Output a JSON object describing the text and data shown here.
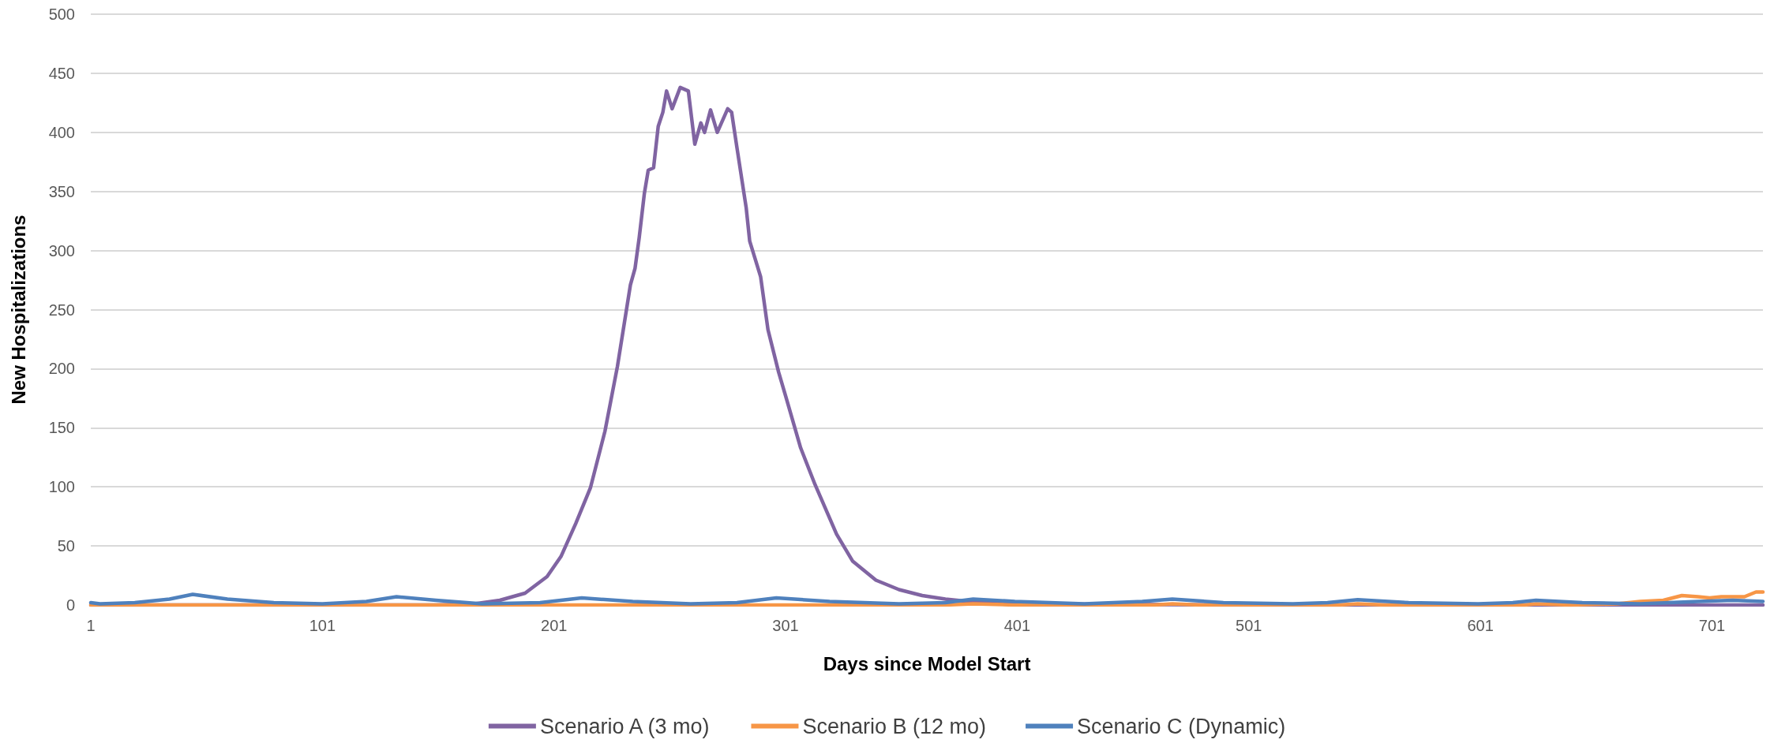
{
  "chart_data": {
    "type": "line",
    "xlabel": "Days since Model Start",
    "ylabel": "New Hospitalizations",
    "xlim": [
      1,
      723
    ],
    "ylim": [
      0,
      500
    ],
    "xticks": [
      1,
      101,
      201,
      301,
      401,
      501,
      601,
      701
    ],
    "yticks": [
      0,
      50,
      100,
      150,
      200,
      250,
      300,
      350,
      400,
      450,
      500
    ],
    "grid": "y",
    "legend": "bottom",
    "marker": "none",
    "line_style": "solid",
    "series": [
      {
        "name": "Scenario A (3 mo)",
        "color": "#8064a2",
        "x": [
          1,
          100,
          150,
          166.6,
          177.6,
          188.5,
          198,
          204,
          210.4,
          216.7,
          223,
          228.4,
          234,
          236,
          237.8,
          240,
          241.7,
          244,
          246,
          248,
          249.6,
          252,
          255.5,
          259,
          261.8,
          264.4,
          266,
          268.6,
          271.5,
          276,
          277.7,
          280,
          284,
          285.5,
          290.2,
          293.4,
          298,
          301,
          307.5,
          313.7,
          323,
          330,
          340,
          350,
          360,
          370,
          380,
          400,
          500,
          600,
          723
        ],
        "values": [
          0,
          0,
          0,
          1,
          4,
          10,
          24,
          41,
          69,
          99,
          147,
          202,
          271,
          285,
          311,
          348,
          368,
          370,
          405,
          417,
          435,
          420,
          438,
          435,
          390,
          408,
          400,
          419,
          400,
          420,
          417,
          387,
          336,
          308,
          278,
          233,
          197,
          177,
          133,
          102,
          60,
          37,
          21,
          13,
          8,
          5,
          3,
          1,
          0,
          0,
          0
        ]
      },
      {
        "name": "Scenario B (12 mo)",
        "color": "#f79646",
        "x": [
          1,
          370,
          382,
          400,
          460,
          468,
          480,
          540,
          548,
          560,
          620,
          625,
          640,
          660,
          670,
          680,
          688,
          695,
          700,
          705,
          715,
          720,
          723
        ],
        "values": [
          0,
          0,
          1,
          0,
          0,
          1,
          0,
          0,
          1,
          0,
          0,
          1,
          0,
          1,
          3,
          4,
          8,
          7,
          6,
          7,
          7,
          11,
          11
        ]
      },
      {
        "name": "Scenario C (Dynamic)",
        "color": "#4f81bd",
        "x": [
          1,
          5,
          20,
          35,
          45,
          60,
          80,
          101,
          120,
          133,
          150,
          170,
          195,
          213,
          235,
          260,
          280,
          297,
          320,
          350,
          370,
          382,
          400,
          430,
          455,
          468,
          490,
          520,
          535,
          548,
          570,
          600,
          615,
          625,
          645,
          670,
          695,
          710,
          723
        ],
        "values": [
          2,
          1,
          2,
          5,
          9,
          5,
          2,
          1,
          3,
          7,
          4,
          1,
          2,
          6,
          3,
          1,
          2,
          6,
          3,
          1,
          2,
          5,
          3,
          1,
          3,
          5,
          2,
          1,
          2,
          4.5,
          2,
          1,
          2,
          4,
          2,
          1,
          3,
          4,
          3
        ]
      }
    ]
  }
}
